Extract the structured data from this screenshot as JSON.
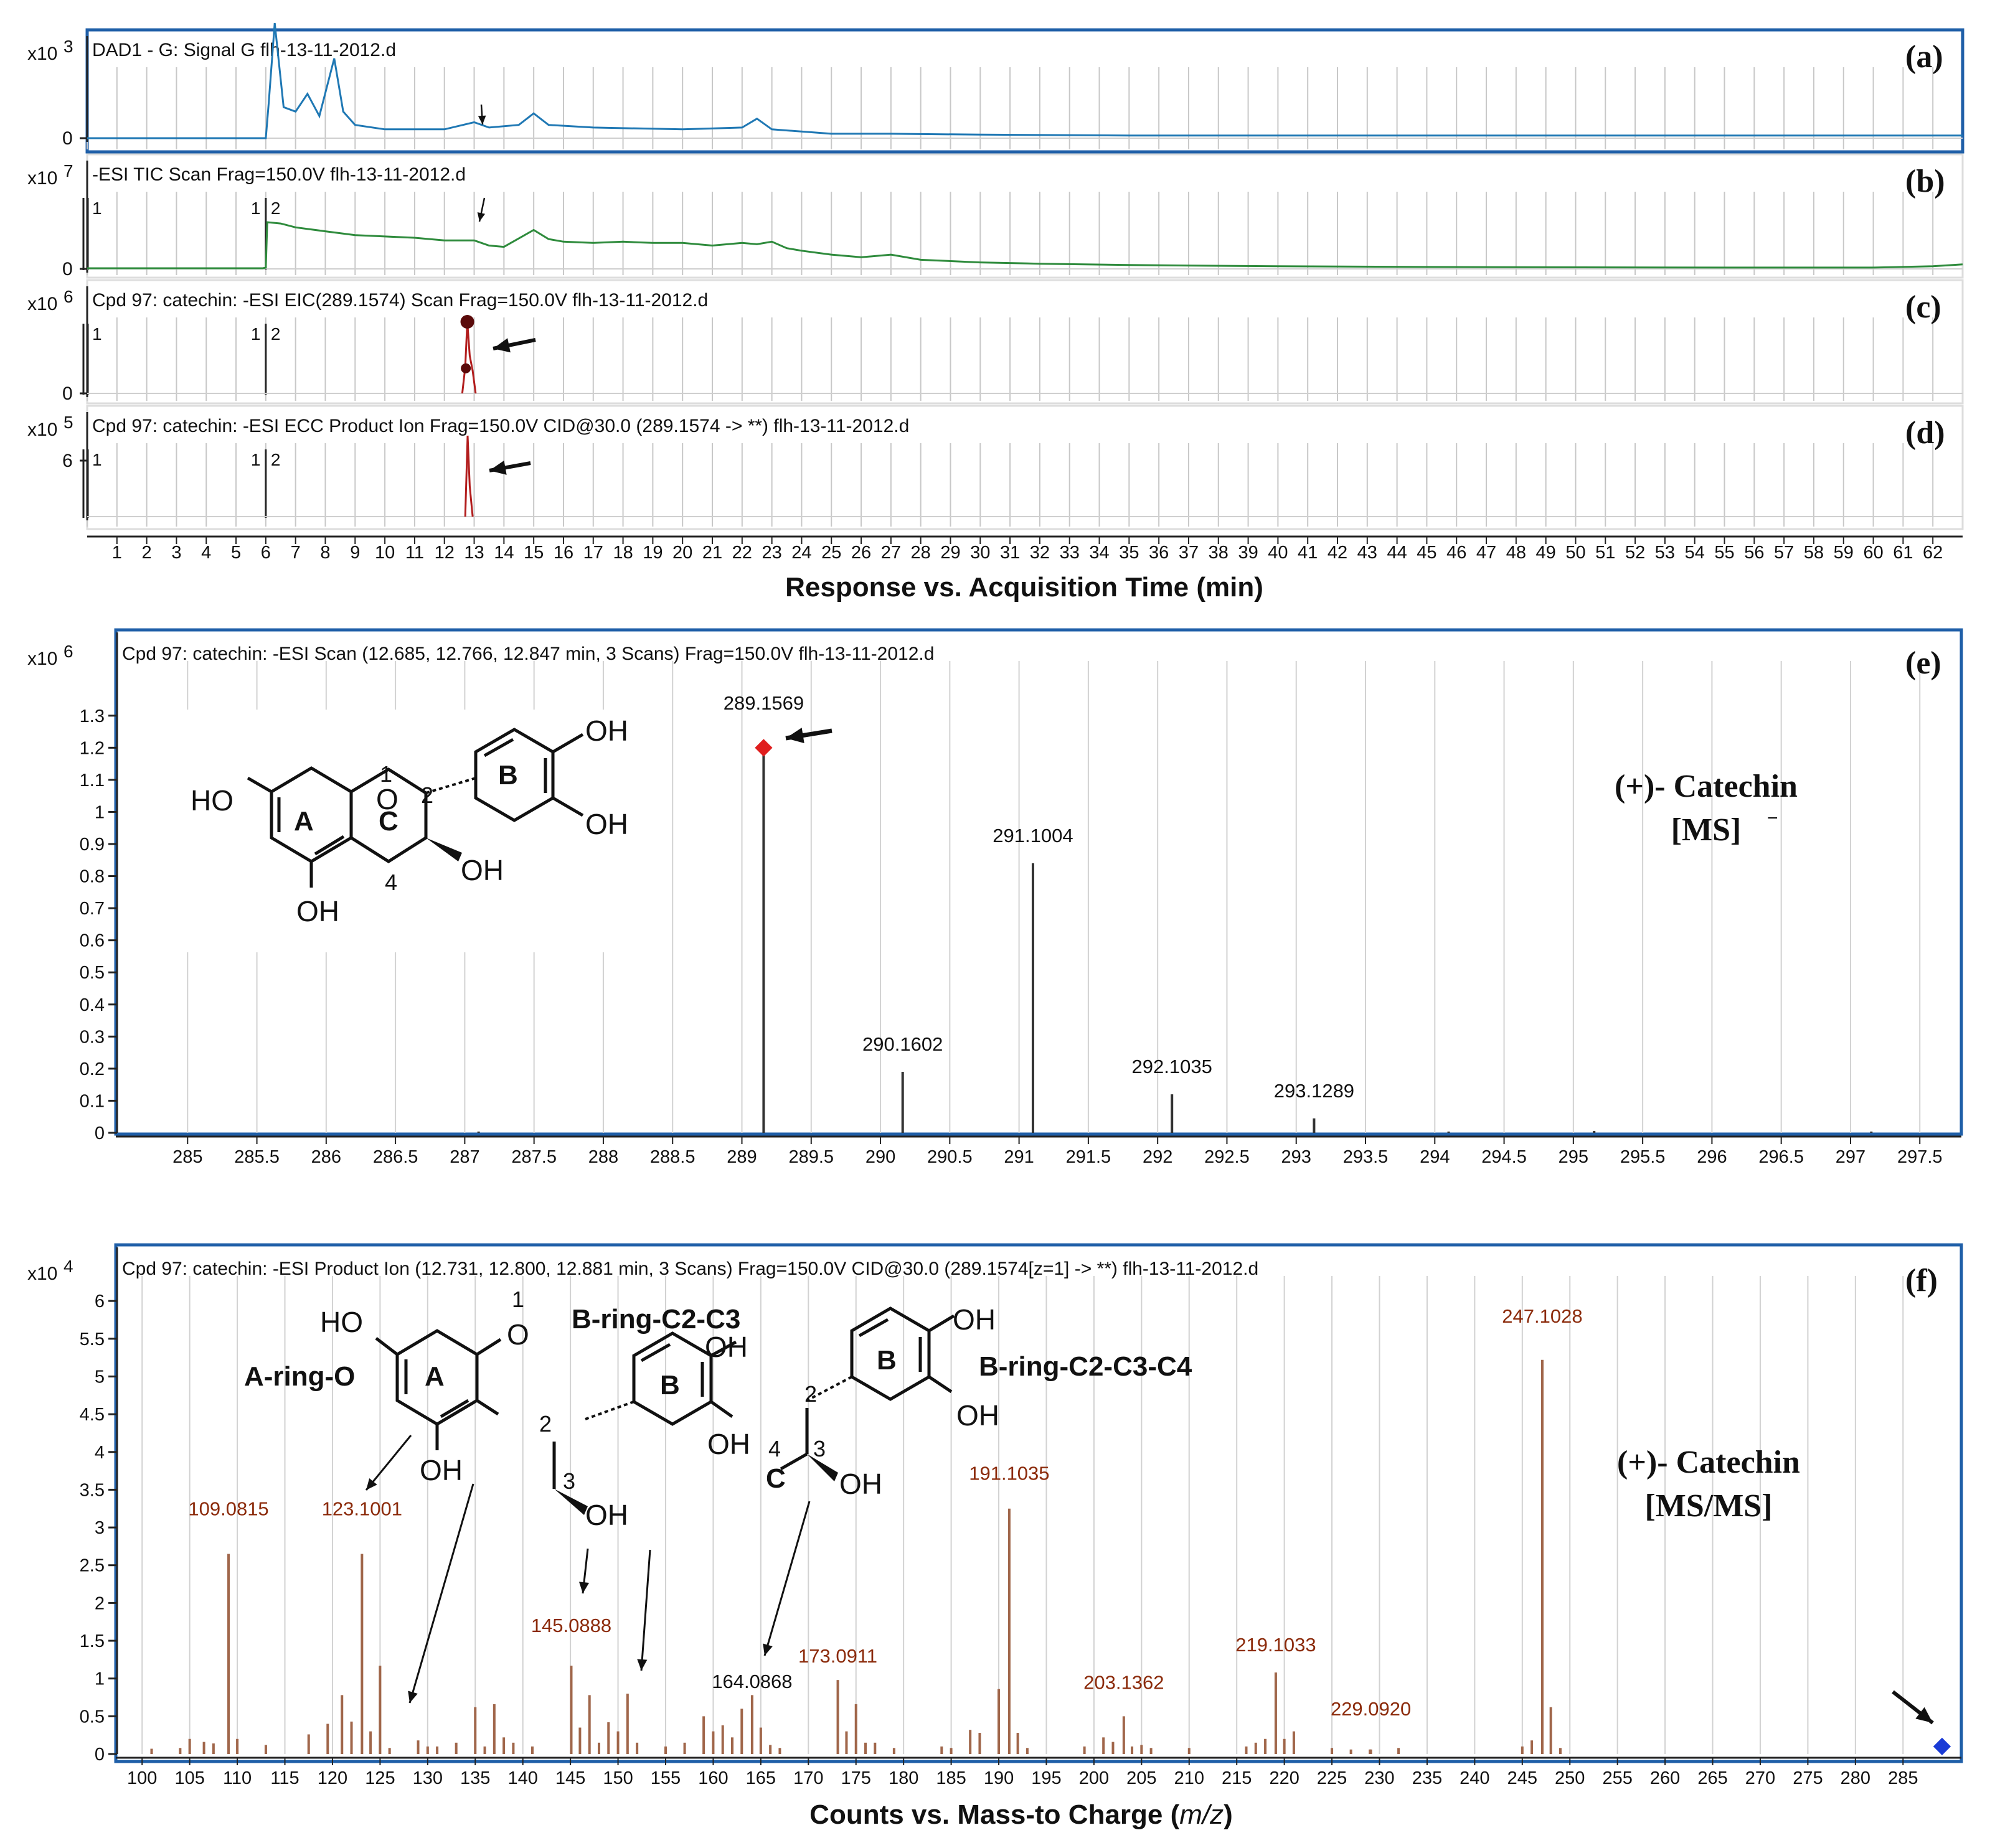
{
  "chromatograms": {
    "x_axis_label": "Response vs. Acquisition Time (min)",
    "x_ticks": [
      "1",
      "2",
      "3",
      "4",
      "5",
      "6",
      "7",
      "8",
      "9",
      "10",
      "11",
      "12",
      "13",
      "14",
      "15",
      "16",
      "17",
      "18",
      "19",
      "20",
      "21",
      "22",
      "23",
      "24",
      "25",
      "26",
      "27",
      "28",
      "29",
      "30",
      "31",
      "32",
      "33",
      "34",
      "35",
      "36",
      "37",
      "38",
      "39",
      "40",
      "41",
      "42",
      "43",
      "44",
      "45",
      "46",
      "47",
      "48",
      "49",
      "50",
      "51",
      "52",
      "53",
      "54",
      "55",
      "56",
      "57",
      "58",
      "59",
      "60",
      "61",
      "62"
    ],
    "panels": [
      {
        "id": "a",
        "label": "(a)",
        "scale": "x10",
        "exp": "3",
        "title": "DAD1 - G: Signal G flh-13-11-2012.d",
        "y_ticks": [
          "0"
        ],
        "markers": [],
        "color": "#1f78b4"
      },
      {
        "id": "b",
        "label": "(b)",
        "scale": "x10",
        "exp": "7",
        "title": "-ESI TIC Scan Frag=150.0V flh-13-11-2012.d",
        "y_ticks": [
          "0"
        ],
        "markers": [
          "1",
          "1",
          "2"
        ],
        "color": "#2e8b3c"
      },
      {
        "id": "c",
        "label": "(c)",
        "scale": "x10",
        "exp": "6",
        "title": "Cpd 97: catechin: -ESI EIC(289.1574) Scan Frag=150.0V flh-13-11-2012.d",
        "y_ticks": [
          "0"
        ],
        "markers": [
          "1",
          "1",
          "2"
        ],
        "color": "#b21d1d"
      },
      {
        "id": "d",
        "label": "(d)",
        "scale": "x10",
        "exp": "5",
        "title": "Cpd 97: catechin: -ESI ECC Product Ion Frag=150.0V CID@30.0 (289.1574 -> **) flh-13-11-2012.d",
        "y_ticks": [
          "6"
        ],
        "markers": [
          "1",
          "1",
          "2"
        ],
        "color": "#b21d1d"
      }
    ]
  },
  "panel_e": {
    "label": "(e)",
    "scale": "x10",
    "exp": "6",
    "title": "Cpd 97: catechin: -ESI Scan (12.685, 12.766, 12.847 min, 3 Scans) Frag=150.0V flh-13-11-2012.d",
    "annotation_line1": "(+)- Catechin",
    "annotation_line2": "[MS]",
    "structure_labels": {
      "ho": "HO",
      "oh_top": "OH",
      "oh_mid": "OH",
      "oh_c3": "OH",
      "oh_bottom": "OH",
      "o": "O",
      "n1": "1",
      "n2": "2",
      "n4": "4",
      "ringA": "A",
      "ringB": "B",
      "ringC": "C"
    }
  },
  "panel_f": {
    "label": "(f)",
    "scale": "x10",
    "exp": "4",
    "title": "Cpd 97: catechin: -ESI Product Ion (12.731, 12.800, 12.881 min, 3 Scans) Frag=150.0V CID@30.0 (289.1574[z=1] -> **) flh-13-11-2012.d",
    "x_axis_label_pre": "Counts vs. Mass-to Charge (",
    "x_axis_label_mz": "m/z",
    "x_axis_label_post": ")",
    "annotation_line1": "(+)- Catechin",
    "annotation_line2": "[MS/MS]",
    "fragments": {
      "a_ring": "A-ring-O",
      "b_c2c3": "B-ring-C2-C3",
      "b_c2c3c4": "B-ring-C2-C3-C4"
    },
    "structure_labels": {
      "ho": "HO",
      "o": "O",
      "n1": "1",
      "ringA": "A",
      "oh_a": "OH",
      "oh_b1": "OH",
      "oh_b2": "OH",
      "n2a": "2",
      "n3a": "3",
      "oh_3a": "OH",
      "ringB": "B",
      "oh_b3": "OH",
      "oh_b4": "OH",
      "n2b": "2",
      "n4b": "4",
      "n3b": "3",
      "ringC": "C",
      "oh_3b": "OH",
      "ringB2": "B"
    }
  },
  "chart_data": [
    {
      "type": "line",
      "id": "a",
      "title": "DAD1 - G: Signal G flh-13-11-2012.d",
      "xlabel": "Response vs. Acquisition Time (min)",
      "xlim": [
        0,
        63
      ],
      "series": [
        {
          "name": "",
          "x": [
            0,
            5,
            6,
            6.1,
            6.3,
            6.6,
            7,
            7.4,
            7.8,
            8.3,
            8.6,
            9,
            10,
            12,
            13,
            13.5,
            14.5,
            15,
            15.5,
            17,
            20,
            22,
            22.5,
            23,
            25,
            27,
            30,
            35,
            40,
            50,
            63
          ],
          "y": [
            0,
            0,
            0,
            0.4,
            1.3,
            0.35,
            0.3,
            0.5,
            0.25,
            0.9,
            0.3,
            0.15,
            0.1,
            0.1,
            0.18,
            0.12,
            0.15,
            0.28,
            0.15,
            0.12,
            0.1,
            0.12,
            0.22,
            0.1,
            0.05,
            0.05,
            0.04,
            0.03,
            0.03,
            0.03,
            0.03
          ]
        }
      ]
    },
    {
      "type": "line",
      "id": "b",
      "title": "-ESI TIC Scan Frag=150.0V flh-13-11-2012.d",
      "xlabel": "Response vs. Acquisition Time (min)",
      "xlim": [
        0,
        63
      ],
      "series": [
        {
          "name": "",
          "x": [
            0,
            5.9,
            6,
            6.05,
            6.5,
            7,
            8,
            9,
            10,
            11,
            12,
            13,
            13.5,
            14,
            15,
            15.5,
            16,
            17,
            18,
            19,
            20,
            21,
            22,
            22.5,
            23,
            23.5,
            24,
            25,
            26,
            27,
            28,
            30,
            32,
            35,
            40,
            45,
            50,
            55,
            60,
            62,
            63
          ],
          "y": [
            0.05,
            0.05,
            0.1,
            3.6,
            3.5,
            3.2,
            2.9,
            2.6,
            2.5,
            2.4,
            2.2,
            2.2,
            1.8,
            1.7,
            3.0,
            2.3,
            2.1,
            2.0,
            2.1,
            2.0,
            2.0,
            1.8,
            2.0,
            1.9,
            2.1,
            1.6,
            1.4,
            1.1,
            0.9,
            1.1,
            0.7,
            0.5,
            0.4,
            0.3,
            0.2,
            0.15,
            0.12,
            0.1,
            0.1,
            0.2,
            0.35
          ]
        }
      ]
    },
    {
      "type": "line",
      "id": "c",
      "title": "Cpd 97: catechin: -ESI EIC(289.1574) Scan Frag=150.0V flh-13-11-2012.d",
      "xlabel": "Response vs. Acquisition Time (min)",
      "xlim": [
        0,
        63
      ],
      "series": [
        {
          "name": "",
          "x": [
            12.6,
            12.7,
            12.77,
            12.85,
            12.95,
            13.05
          ],
          "y": [
            0,
            0.35,
            0.95,
            0.5,
            0.3,
            0
          ]
        }
      ]
    },
    {
      "type": "line",
      "id": "d",
      "title": "Cpd 97: catechin: -ESI ECC Product Ion Frag=150.0V CID@30.0 (289.1574 -> **) flh-13-11-2012.d",
      "xlabel": "Response vs. Acquisition Time (min)",
      "xlim": [
        0,
        63
      ],
      "series": [
        {
          "name": "",
          "x": [
            12.7,
            12.78,
            12.85,
            12.95
          ],
          "y": [
            0,
            0.8,
            0.3,
            0
          ]
        }
      ]
    },
    {
      "type": "bar",
      "id": "e",
      "title": "Cpd 97: catechin: -ESI Scan (12.685, 12.766, 12.847 min, 3 Scans) Frag=150.0V flh-13-11-2012.d",
      "xlabel": "",
      "ylabel": "",
      "xlim": [
        284.5,
        297.8
      ],
      "ylim": [
        0,
        1.35
      ],
      "x_ticks": [
        285,
        285.5,
        286,
        286.5,
        287,
        287.5,
        288,
        288.5,
        289,
        289.5,
        290,
        290.5,
        291,
        291.5,
        292,
        292.5,
        293,
        293.5,
        294,
        294.5,
        295,
        295.5,
        296,
        296.5,
        297,
        297.5
      ],
      "y_ticks": [
        0,
        0.1,
        0.2,
        0.3,
        0.4,
        0.5,
        0.6,
        0.7,
        0.8,
        0.9,
        1,
        1.1,
        1.2,
        1.3
      ],
      "peaks": [
        {
          "mz": 289.1569,
          "intensity": 1.2,
          "label": "289.1569"
        },
        {
          "mz": 290.1602,
          "intensity": 0.19,
          "label": "290.1602"
        },
        {
          "mz": 291.1004,
          "intensity": 0.84,
          "label": "291.1004"
        },
        {
          "mz": 292.1035,
          "intensity": 0.12,
          "label": "292.1035"
        },
        {
          "mz": 293.1289,
          "intensity": 0.045,
          "label": "293.1289"
        },
        {
          "mz": 287.1,
          "intensity": 0.004,
          "label": ""
        },
        {
          "mz": 294.1,
          "intensity": 0.004,
          "label": ""
        },
        {
          "mz": 295.15,
          "intensity": 0.006,
          "label": ""
        },
        {
          "mz": 297.15,
          "intensity": 0.004,
          "label": ""
        }
      ]
    },
    {
      "type": "bar",
      "id": "f",
      "title": "Cpd 97: catechin: -ESI Product Ion (12.731, 12.800, 12.881 min, 3 Scans) Frag=150.0V CID@30.0 (289.1574[z=1] -> **) flh-13-11-2012.d",
      "xlabel": "Counts vs. Mass-to Charge (m/z)",
      "ylabel": "",
      "xlim": [
        97.5,
        291
      ],
      "ylim": [
        0,
        6.1
      ],
      "x_ticks": [
        100,
        105,
        110,
        115,
        120,
        125,
        130,
        135,
        140,
        145,
        150,
        155,
        160,
        165,
        170,
        175,
        180,
        185,
        190,
        195,
        200,
        205,
        210,
        215,
        220,
        225,
        230,
        235,
        240,
        245,
        250,
        255,
        260,
        265,
        270,
        275,
        280,
        285
      ],
      "y_ticks": [
        0,
        0.5,
        1,
        1.5,
        2,
        2.5,
        3,
        3.5,
        4,
        4.5,
        5,
        5.5,
        6
      ],
      "peaks": [
        {
          "mz": 109.0815,
          "intensity": 2.65,
          "label": "109.0815"
        },
        {
          "mz": 123.1001,
          "intensity": 2.65,
          "label": "123.1001"
        },
        {
          "mz": 145.0888,
          "intensity": 1.17,
          "label": "145.0888"
        },
        {
          "mz": 164.0868,
          "intensity": 0.78,
          "label": "164.0868"
        },
        {
          "mz": 173.0911,
          "intensity": 0.98,
          "label": "173.0911"
        },
        {
          "mz": 191.1035,
          "intensity": 3.25,
          "label": "191.1035"
        },
        {
          "mz": 203.1362,
          "intensity": 0.5,
          "label": "203.1362"
        },
        {
          "mz": 219.1033,
          "intensity": 1.08,
          "label": "219.1033"
        },
        {
          "mz": 229.092,
          "intensity": 0.06,
          "label": "229.0920"
        },
        {
          "mz": 247.1028,
          "intensity": 5.22,
          "label": "247.1028"
        },
        {
          "mz": 289.1,
          "intensity": 0.1,
          "label": ""
        },
        {
          "mz": 101,
          "intensity": 0.07,
          "label": ""
        },
        {
          "mz": 104,
          "intensity": 0.08,
          "label": ""
        },
        {
          "mz": 105,
          "intensity": 0.2,
          "label": ""
        },
        {
          "mz": 106.5,
          "intensity": 0.16,
          "label": ""
        },
        {
          "mz": 107.5,
          "intensity": 0.14,
          "label": ""
        },
        {
          "mz": 110,
          "intensity": 0.2,
          "label": ""
        },
        {
          "mz": 113,
          "intensity": 0.12,
          "label": ""
        },
        {
          "mz": 117.5,
          "intensity": 0.26,
          "label": ""
        },
        {
          "mz": 119.5,
          "intensity": 0.4,
          "label": ""
        },
        {
          "mz": 121,
          "intensity": 0.78,
          "label": ""
        },
        {
          "mz": 122,
          "intensity": 0.43,
          "label": ""
        },
        {
          "mz": 124,
          "intensity": 0.3,
          "label": ""
        },
        {
          "mz": 125,
          "intensity": 1.17,
          "label": ""
        },
        {
          "mz": 126,
          "intensity": 0.08,
          "label": ""
        },
        {
          "mz": 129,
          "intensity": 0.18,
          "label": ""
        },
        {
          "mz": 130,
          "intensity": 0.1,
          "label": ""
        },
        {
          "mz": 131,
          "intensity": 0.1,
          "label": ""
        },
        {
          "mz": 133,
          "intensity": 0.15,
          "label": ""
        },
        {
          "mz": 135,
          "intensity": 0.62,
          "label": ""
        },
        {
          "mz": 136,
          "intensity": 0.1,
          "label": ""
        },
        {
          "mz": 137,
          "intensity": 0.66,
          "label": ""
        },
        {
          "mz": 138,
          "intensity": 0.22,
          "label": ""
        },
        {
          "mz": 139,
          "intensity": 0.15,
          "label": ""
        },
        {
          "mz": 141,
          "intensity": 0.1,
          "label": ""
        },
        {
          "mz": 146,
          "intensity": 0.35,
          "label": ""
        },
        {
          "mz": 147,
          "intensity": 0.78,
          "label": ""
        },
        {
          "mz": 148,
          "intensity": 0.15,
          "label": ""
        },
        {
          "mz": 149,
          "intensity": 0.42,
          "label": ""
        },
        {
          "mz": 150,
          "intensity": 0.3,
          "label": ""
        },
        {
          "mz": 151,
          "intensity": 0.8,
          "label": ""
        },
        {
          "mz": 152,
          "intensity": 0.15,
          "label": ""
        },
        {
          "mz": 155,
          "intensity": 0.1,
          "label": ""
        },
        {
          "mz": 157,
          "intensity": 0.15,
          "label": ""
        },
        {
          "mz": 159,
          "intensity": 0.5,
          "label": ""
        },
        {
          "mz": 160,
          "intensity": 0.3,
          "label": ""
        },
        {
          "mz": 161,
          "intensity": 0.38,
          "label": ""
        },
        {
          "mz": 162,
          "intensity": 0.22,
          "label": ""
        },
        {
          "mz": 163,
          "intensity": 0.6,
          "label": ""
        },
        {
          "mz": 165,
          "intensity": 0.35,
          "label": ""
        },
        {
          "mz": 166,
          "intensity": 0.12,
          "label": ""
        },
        {
          "mz": 167,
          "intensity": 0.08,
          "label": ""
        },
        {
          "mz": 174,
          "intensity": 0.3,
          "label": ""
        },
        {
          "mz": 175,
          "intensity": 0.66,
          "label": ""
        },
        {
          "mz": 176,
          "intensity": 0.15,
          "label": ""
        },
        {
          "mz": 177,
          "intensity": 0.15,
          "label": ""
        },
        {
          "mz": 179,
          "intensity": 0.08,
          "label": ""
        },
        {
          "mz": 184,
          "intensity": 0.1,
          "label": ""
        },
        {
          "mz": 185,
          "intensity": 0.08,
          "label": ""
        },
        {
          "mz": 187,
          "intensity": 0.32,
          "label": ""
        },
        {
          "mz": 188,
          "intensity": 0.28,
          "label": ""
        },
        {
          "mz": 190,
          "intensity": 0.86,
          "label": ""
        },
        {
          "mz": 192,
          "intensity": 0.28,
          "label": ""
        },
        {
          "mz": 193,
          "intensity": 0.08,
          "label": ""
        },
        {
          "mz": 199,
          "intensity": 0.1,
          "label": ""
        },
        {
          "mz": 201,
          "intensity": 0.22,
          "label": ""
        },
        {
          "mz": 202,
          "intensity": 0.16,
          "label": ""
        },
        {
          "mz": 204,
          "intensity": 0.1,
          "label": ""
        },
        {
          "mz": 205,
          "intensity": 0.12,
          "label": ""
        },
        {
          "mz": 206,
          "intensity": 0.08,
          "label": ""
        },
        {
          "mz": 210,
          "intensity": 0.08,
          "label": ""
        },
        {
          "mz": 216,
          "intensity": 0.1,
          "label": ""
        },
        {
          "mz": 217,
          "intensity": 0.15,
          "label": ""
        },
        {
          "mz": 218,
          "intensity": 0.2,
          "label": ""
        },
        {
          "mz": 220,
          "intensity": 0.2,
          "label": ""
        },
        {
          "mz": 221,
          "intensity": 0.3,
          "label": ""
        },
        {
          "mz": 225,
          "intensity": 0.08,
          "label": ""
        },
        {
          "mz": 227,
          "intensity": 0.06,
          "label": ""
        },
        {
          "mz": 229,
          "intensity": 0.06,
          "label": ""
        },
        {
          "mz": 232,
          "intensity": 0.08,
          "label": ""
        },
        {
          "mz": 245,
          "intensity": 0.1,
          "label": ""
        },
        {
          "mz": 246,
          "intensity": 0.18,
          "label": ""
        },
        {
          "mz": 248,
          "intensity": 0.62,
          "label": ""
        },
        {
          "mz": 249,
          "intensity": 0.08,
          "label": ""
        }
      ]
    }
  ]
}
